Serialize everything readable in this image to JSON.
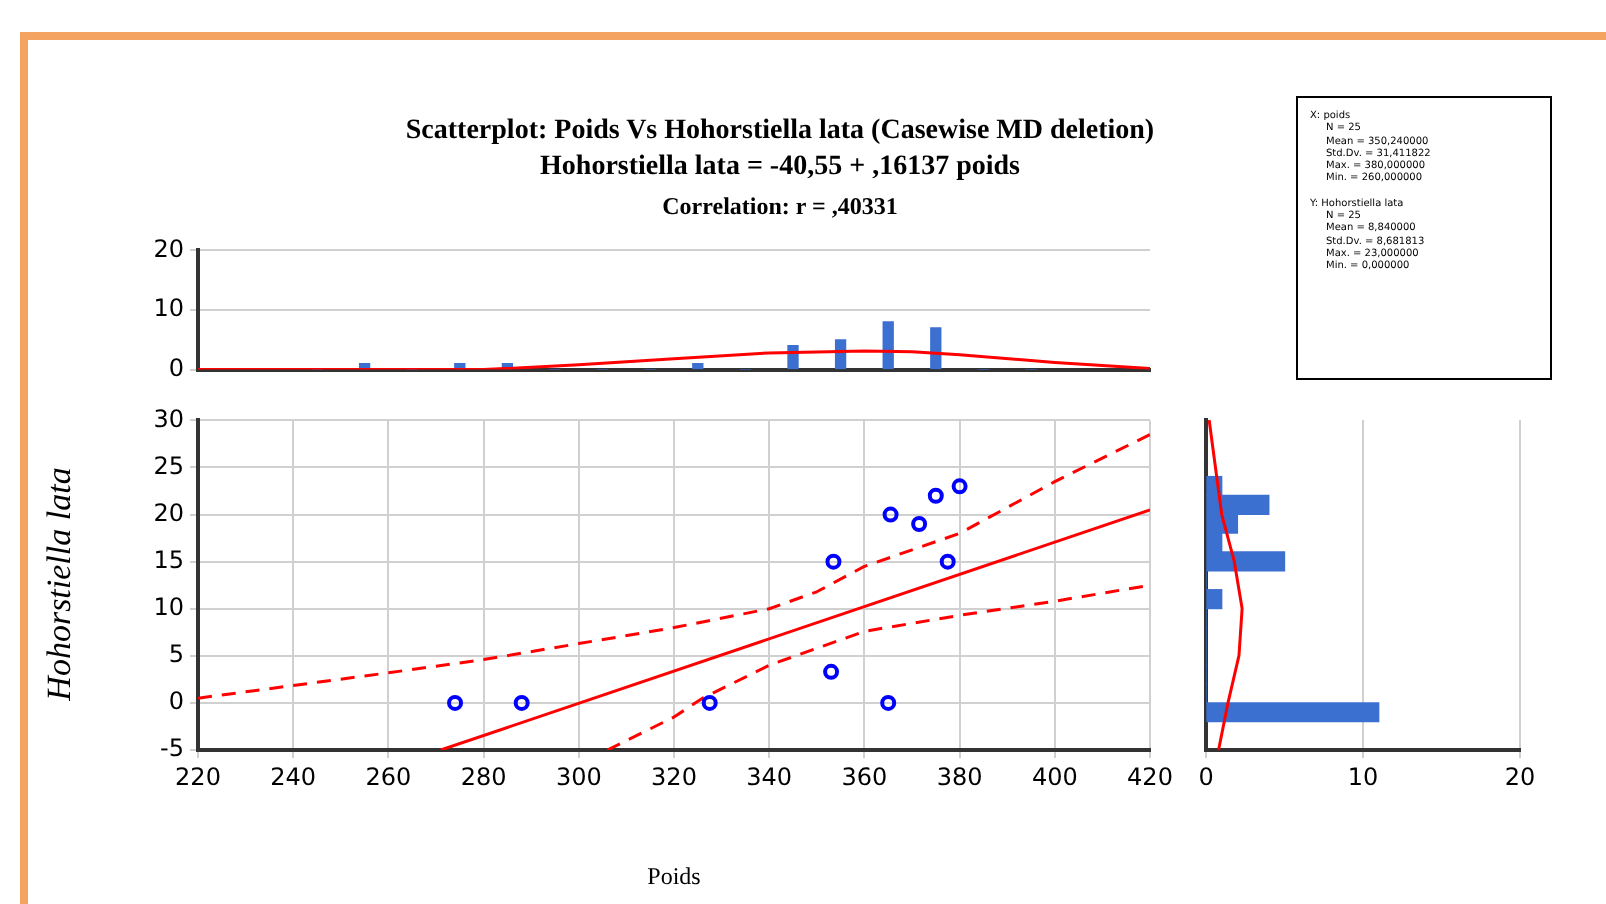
{
  "chart_data": [
    {
      "type": "bar",
      "title": "Scatterplot: Poids Vs Hohorstiella lata (Casewise MD deletion)",
      "subtitle": "Hohorstiella lata = -40,55 + ,16137  poids",
      "annotations": [
        "Correlation: r = ,40331"
      ],
      "x": [
        245,
        255,
        265,
        275,
        285,
        295,
        305,
        315,
        325,
        335,
        345,
        355,
        365,
        375,
        385,
        395
      ],
      "values": [
        0,
        1,
        0,
        1,
        1,
        0,
        0,
        0,
        1,
        0,
        4,
        5,
        8,
        7,
        0,
        0
      ],
      "color": "#3b6fd0",
      "xlim": [
        220,
        420
      ],
      "ylim": [
        0,
        20
      ],
      "yticks": [
        0,
        10,
        20
      ],
      "grid": "y",
      "tick_labels": "y",
      "series": [
        {
          "type": "line",
          "color": "#ff0000",
          "x": [
            220,
            280,
            300,
            320,
            340,
            360,
            370,
            380,
            400,
            420
          ],
          "values": [
            0,
            0,
            0.8,
            1.8,
            2.8,
            3.1,
            3,
            2.5,
            1.2,
            0.2
          ]
        }
      ]
    },
    {
      "type": "other",
      "annotations": [
        "X: poids",
        "N = 25",
        "Mean = 350,240000",
        "Std.Dv. = 31,411822",
        "Max. = 380,000000",
        "Min. = 260,000000",
        "Y: Hohorstiella lata",
        "N = 25",
        "Mean = 8,840000",
        "Std.Dv. = 8,681813",
        "Max. = 23,000000",
        "Min. = 0,000000"
      ]
    },
    {
      "type": "scatter",
      "xlabel": "Poids",
      "ylabel": "Hohorstiella lata",
      "xlim": [
        220,
        420
      ],
      "ylim": [
        -5,
        30
      ],
      "xticks": [
        220,
        240,
        260,
        280,
        300,
        320,
        340,
        360,
        380,
        400,
        420
      ],
      "yticks": [
        -5,
        0,
        5,
        10,
        15,
        20,
        25,
        30
      ],
      "grid": true,
      "series": [
        {
          "type": "scatter",
          "marker": "circle",
          "color": "#0000ff",
          "x": [
            274,
            288,
            327.5,
            353,
            353.5,
            365,
            365.5,
            371.5,
            375,
            377.5,
            380
          ],
          "values": [
            0,
            0,
            0,
            3.3,
            15,
            0,
            20,
            19,
            22,
            15,
            23
          ]
        },
        {
          "type": "line",
          "color": "#ff0000",
          "line_style": "solid",
          "x": [
            271,
            420
          ],
          "values": [
            -5,
            20.5
          ]
        },
        {
          "type": "line",
          "color": "#ff0000",
          "line_style": "dashed",
          "x": [
            220,
            260,
            280,
            300,
            320,
            340,
            350,
            360,
            380,
            400,
            420
          ],
          "values": [
            0.5,
            3.2,
            4.6,
            6.3,
            8,
            10,
            11.8,
            14.5,
            18,
            23.5,
            28.5
          ]
        },
        {
          "type": "line",
          "color": "#ff0000",
          "line_style": "dashed",
          "x": [
            306,
            320,
            326,
            340,
            360,
            380,
            400,
            420
          ],
          "values": [
            -5,
            -1.5,
            0.5,
            4,
            7.6,
            9.3,
            10.8,
            12.5
          ]
        }
      ]
    },
    {
      "type": "histogram",
      "orientation": "horizontal",
      "bins": [
        -2,
        0,
        2,
        4,
        6,
        8,
        10,
        12,
        14,
        16,
        18,
        20,
        22,
        24
      ],
      "values": [
        11,
        0,
        0,
        0,
        0,
        0,
        1,
        0,
        5,
        1,
        2,
        4,
        1
      ],
      "color": "#3b6fd0",
      "ylim": [
        -5,
        30
      ],
      "xlim": [
        0,
        20
      ],
      "xticks": [
        0,
        10,
        20
      ],
      "grid": "x",
      "tick_labels": "x",
      "series": [
        {
          "type": "line",
          "color": "#ff0000",
          "x": [
            30,
            25,
            20,
            15,
            10,
            5,
            0,
            -5
          ],
          "values": [
            0.2,
            0.6,
            1,
            1.8,
            2.3,
            2.1,
            1.4,
            0.8
          ]
        }
      ]
    }
  ]
}
